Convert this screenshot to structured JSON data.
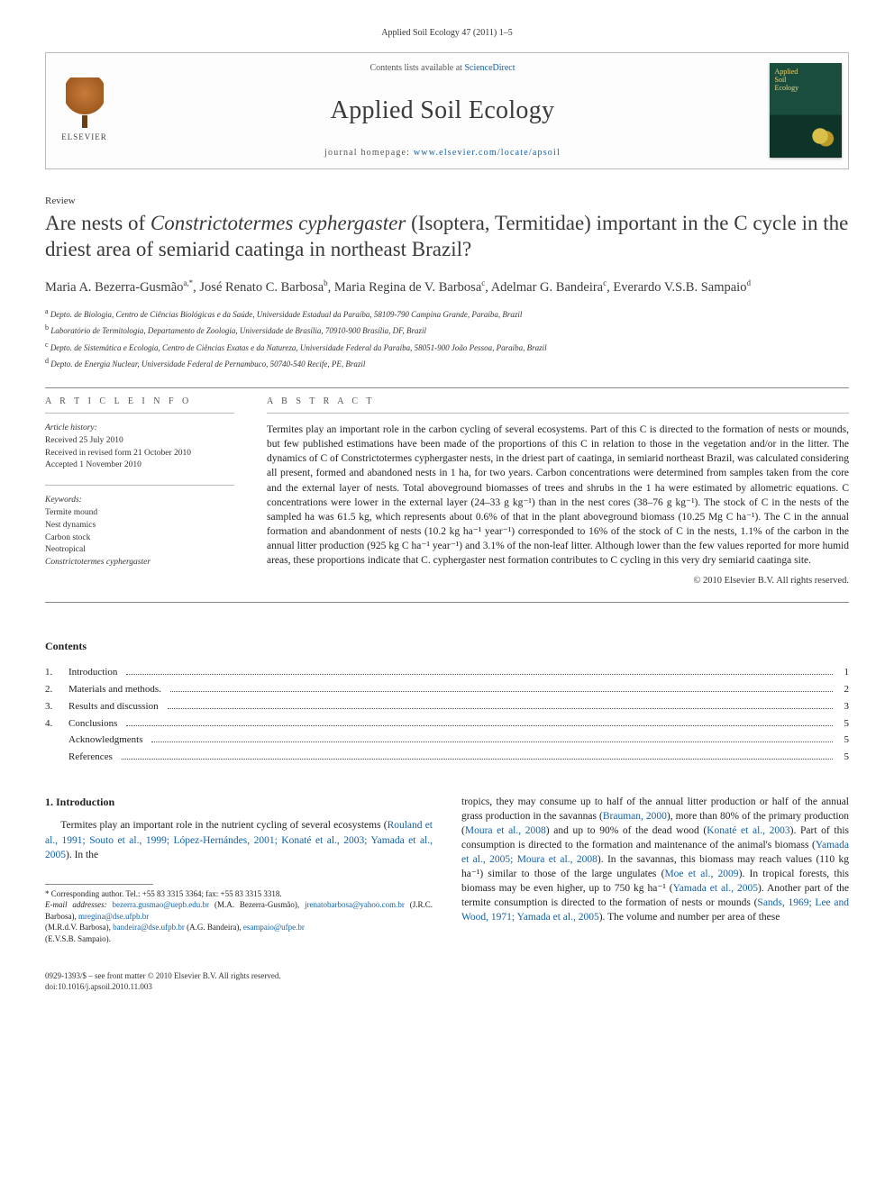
{
  "header": {
    "citation": "Applied Soil Ecology 47 (2011) 1–5",
    "contents_prefix": "Contents lists available at ",
    "contents_link": "ScienceDirect",
    "journal": "Applied Soil Ecology",
    "homepage_prefix": "journal homepage: ",
    "homepage_link": "www.elsevier.com/locate/apsoil",
    "publisher_name": "ELSEVIER"
  },
  "article": {
    "doc_type": "Review",
    "title_pre": "Are nests of ",
    "title_species": "Constrictotermes cyphergaster",
    "title_post": " (Isoptera, Termitidae) important in the C cycle in the driest area of semiarid caatinga in northeast Brazil?",
    "authors_html": "Maria A. Bezerra-Gusmão<sup>a,*</sup>, José Renato C. Barbosa<sup>b</sup>, Maria Regina de V. Barbosa<sup>c</sup>, Adelmar G. Bandeira<sup>c</sup>, Everardo V.S.B. Sampaio<sup>d</sup>",
    "affiliations": [
      {
        "sup": "a",
        "text": "Depto. de Biologia, Centro de Ciências Biológicas e da Saúde, Universidade Estadual da Paraíba, 58109-790 Campina Grande, Paraíba, Brazil"
      },
      {
        "sup": "b",
        "text": "Laboratório de Termitologia, Departamento de Zoologia, Universidade de Brasília, 70910-900 Brasília, DF, Brazil"
      },
      {
        "sup": "c",
        "text": "Depto. de Sistemática e Ecologia, Centro de Ciências Exatas e da Natureza, Universidade Federal da Paraíba, 58051-900 João Pessoa, Paraíba, Brazil"
      },
      {
        "sup": "d",
        "text": "Depto. de Energia Nuclear, Universidade Federal de Pernambuco, 50740-540 Recife, PE, Brazil"
      }
    ]
  },
  "info": {
    "heading": "A R T I C L E   I N F O",
    "history_head": "Article history:",
    "history": [
      "Received 25 July 2010",
      "Received in revised form 21 October 2010",
      "Accepted 1 November 2010"
    ],
    "keywords_head": "Keywords:",
    "keywords": [
      "Termite mound",
      "Nest dynamics",
      "Carbon stock",
      "Neotropical",
      "Constrictotermes cyphergaster"
    ]
  },
  "abstract": {
    "heading": "A B S T R A C T",
    "text": "Termites play an important role in the carbon cycling of several ecosystems. Part of this C is directed to the formation of nests or mounds, but few published estimations have been made of the proportions of this C in relation to those in the vegetation and/or in the litter. The dynamics of C of Constrictotermes cyphergaster nests, in the driest part of caatinga, in semiarid northeast Brazil, was calculated considering all present, formed and abandoned nests in 1 ha, for two years. Carbon concentrations were determined from samples taken from the core and the external layer of nests. Total aboveground biomasses of trees and shrubs in the 1 ha were estimated by allometric equations. C concentrations were lower in the external layer (24–33 g kg⁻¹) than in the nest cores (38–76 g kg⁻¹). The stock of C in the nests of the sampled ha was 61.5 kg, which represents about 0.6% of that in the plant aboveground biomass (10.25 Mg C ha⁻¹). The C in the annual formation and abandonment of nests (10.2 kg ha⁻¹ year⁻¹) corresponded to 16% of the stock of C in the nests, 1.1% of the carbon in the annual litter production (925 kg C ha⁻¹ year⁻¹) and 3.1% of the non-leaf litter. Although lower than the few values reported for more humid areas, these proportions indicate that C. cyphergaster nest formation contributes to C cycling in this very dry semiarid caatinga site.",
    "copyright": "© 2010 Elsevier B.V. All rights reserved."
  },
  "toc": {
    "heading": "Contents",
    "items": [
      {
        "num": "1.",
        "label": "Introduction",
        "page": "1",
        "indent": false
      },
      {
        "num": "2.",
        "label": "Materials and methods.",
        "page": "2",
        "indent": false
      },
      {
        "num": "3.",
        "label": "Results and discussion",
        "page": "3",
        "indent": false
      },
      {
        "num": "4.",
        "label": "Conclusions",
        "page": "5",
        "indent": false
      },
      {
        "num": "",
        "label": "Acknowledgments",
        "page": "5",
        "indent": true
      },
      {
        "num": "",
        "label": "References",
        "page": "5",
        "indent": true
      }
    ]
  },
  "body": {
    "sec1_head": "1.  Introduction",
    "col1_p1_pre": "Termites play an important role in the nutrient cycling of several ecosystems (",
    "col1_p1_links": "Rouland et al., 1991; Souto et al., 1999; López-Hernándes, 2001; Konaté et al., 2003; Yamada et al., 2005",
    "col1_p1_post": "). In the",
    "col2_text_pre": "tropics, they may consume up to half of the annual litter production or half of the annual grass production in the savannas (",
    "col2_l1": "Brauman, 2000",
    "col2_text_2": "), more than 80% of the primary production (",
    "col2_l2": "Moura et al., 2008",
    "col2_text_3": ") and up to 90% of the dead wood (",
    "col2_l3": "Konaté et al., 2003",
    "col2_text_4": "). Part of this consumption is directed to the formation and maintenance of the animal's biomass (",
    "col2_l4": "Yamada et al., 2005; Moura et al., 2008",
    "col2_text_5": "). In the savannas, this biomass may reach values (110 kg ha⁻¹) similar to those of the large ungulates (",
    "col2_l5": "Moe et al., 2009",
    "col2_text_6": "). In tropical forests, this biomass may be even higher, up to 750 kg ha⁻¹ (",
    "col2_l6": "Yamada et al., 2005",
    "col2_text_7": "). Another part of the termite consumption is directed to the formation of nests or mounds (",
    "col2_l7": "Sands, 1969; Lee and Wood, 1971; Yamada et al., 2005",
    "col2_text_8": "). The volume and number per area of these"
  },
  "footnote": {
    "corr": "* Corresponding author. Tel.: +55 83 3315 3364; fax: +55 83 3315 3318.",
    "email_label": "E-mail addresses:",
    "emails": [
      {
        "addr": "bezerra.gusmao@uepb.edu.br",
        "who": "(M.A. Bezerra-Gusmão),"
      },
      {
        "addr": "jrenatobarbosa@yahoo.com.br",
        "who": "(J.R.C. Barbosa),"
      },
      {
        "addr": "mregina@dse.ufpb.br",
        "who": ""
      },
      {
        "addr": "",
        "who": "(M.R.d.V. Barbosa),"
      },
      {
        "addr": "bandeira@dse.ufpb.br",
        "who": "(A.G. Bandeira),"
      },
      {
        "addr": "esampaio@ufpe.br",
        "who": ""
      },
      {
        "addr": "",
        "who": "(E.V.S.B. Sampaio)."
      }
    ]
  },
  "bottom": {
    "line1": "0929-1393/$ – see front matter © 2010 Elsevier B.V. All rights reserved.",
    "line2": "doi:10.1016/j.apsoil.2010.11.003"
  },
  "colors": {
    "link": "#1461a8",
    "text": "#222222",
    "rule": "#888888",
    "cover_bg_top": "#1b4d3e",
    "cover_bg_bot": "#0e3328"
  }
}
